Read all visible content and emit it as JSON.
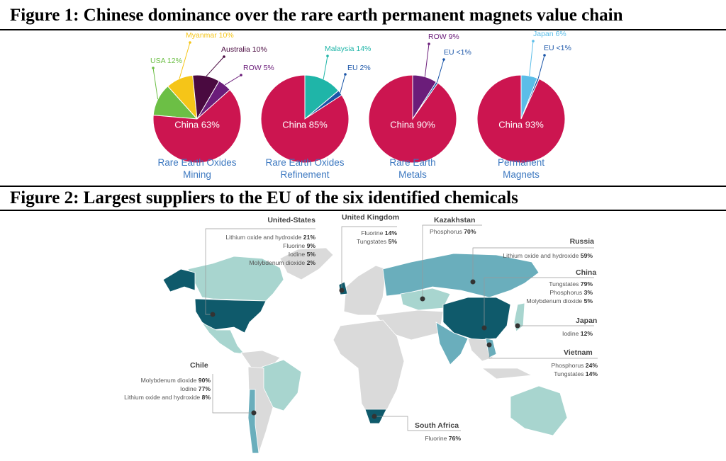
{
  "figure1": {
    "title": "Figure 1: Chinese dominance over the rare earth permanent magnets value chain",
    "pies": [
      {
        "caption": [
          "Rare Earth Oxides",
          "Mining"
        ],
        "slices": [
          {
            "label": "USA 12%",
            "name": "USA",
            "value": 12,
            "color": "#6cbf45"
          },
          {
            "label": "Myanmar 10%",
            "name": "Myanmar",
            "value": 10,
            "color": "#f5c518"
          },
          {
            "label": "Australia 10%",
            "name": "Australia",
            "value": 10,
            "color": "#4a0a40"
          },
          {
            "label": "ROW 5%",
            "name": "ROW",
            "value": 5,
            "color": "#6b1d7a"
          },
          {
            "label": "China 63%",
            "name": "China",
            "value": 63,
            "color": "#cc1550"
          }
        ]
      },
      {
        "caption": [
          "Rare Earth Oxides",
          "Refinement"
        ],
        "slices": [
          {
            "label": "Malaysia 14%",
            "name": "Malaysia",
            "value": 14,
            "color": "#1fb5a8"
          },
          {
            "label": "EU 2%",
            "name": "EU",
            "value": 2,
            "color": "#1a55a8"
          },
          {
            "label": "China 85%",
            "name": "China",
            "value": 85,
            "color": "#cc1550"
          }
        ]
      },
      {
        "caption": [
          "Rare Earth",
          "Metals"
        ],
        "slices": [
          {
            "label": "ROW 9%",
            "name": "ROW",
            "value": 9,
            "color": "#6b1d7a"
          },
          {
            "label": "EU <1%",
            "name": "EU",
            "value": 0.7,
            "color": "#1a55a8"
          },
          {
            "label": "China 90%",
            "name": "China",
            "value": 90,
            "color": "#cc1550"
          }
        ]
      },
      {
        "caption": [
          "Permanent",
          "Magnets"
        ],
        "slices": [
          {
            "label": "Japan 6%",
            "name": "Japan",
            "value": 6,
            "color": "#5bbde8"
          },
          {
            "label": "EU <1%",
            "name": "EU",
            "value": 0.7,
            "color": "#1a55a8"
          },
          {
            "label": "China 93%",
            "name": "China",
            "value": 93,
            "color": "#cc1550"
          }
        ]
      }
    ]
  },
  "figure2": {
    "title": "Figure 2: Largest suppliers to the EU of the six identified chemicals",
    "colors": {
      "dark": "#0f5a6b",
      "mid": "#6aaebc",
      "light": "#a8d5cf",
      "grey": "#dadada"
    },
    "annotations": {
      "us": {
        "title": "United-States",
        "items": [
          [
            "Lithium oxide and hydroxide",
            "21%"
          ],
          [
            "Fluorine",
            "9%"
          ],
          [
            "Iodine",
            "5%"
          ],
          [
            "Molybdenum dioxide",
            "2%"
          ]
        ]
      },
      "uk": {
        "title": "United Kingdom",
        "items": [
          [
            "Fluorine",
            "14%"
          ],
          [
            "Tungstates",
            "5%"
          ]
        ]
      },
      "kz": {
        "title": "Kazakhstan",
        "items": [
          [
            "Phosphorus",
            "70%"
          ]
        ]
      },
      "ru": {
        "title": "Russia",
        "items": [
          [
            "Lithium oxide and hydroxide",
            "59%"
          ]
        ]
      },
      "cn": {
        "title": "China",
        "items": [
          [
            "Tungstates",
            "79%"
          ],
          [
            "Phosphorus",
            "3%"
          ],
          [
            "Molybdenum dioxide",
            "5%"
          ]
        ]
      },
      "jp": {
        "title": "Japan",
        "items": [
          [
            "Iodine",
            "12%"
          ]
        ]
      },
      "vn": {
        "title": "Vietnam",
        "items": [
          [
            "Phosphorus",
            "24%"
          ],
          [
            "Tungstates",
            "14%"
          ]
        ]
      },
      "cl": {
        "title": "Chile",
        "items": [
          [
            "Molybdenum dioxide",
            "90%"
          ],
          [
            "Iodine",
            "77%"
          ],
          [
            "Lithium oxide and hydroxide",
            "8%"
          ]
        ]
      },
      "za": {
        "title": "South Africa",
        "items": [
          [
            "Fluorine",
            "76%"
          ]
        ]
      }
    }
  }
}
